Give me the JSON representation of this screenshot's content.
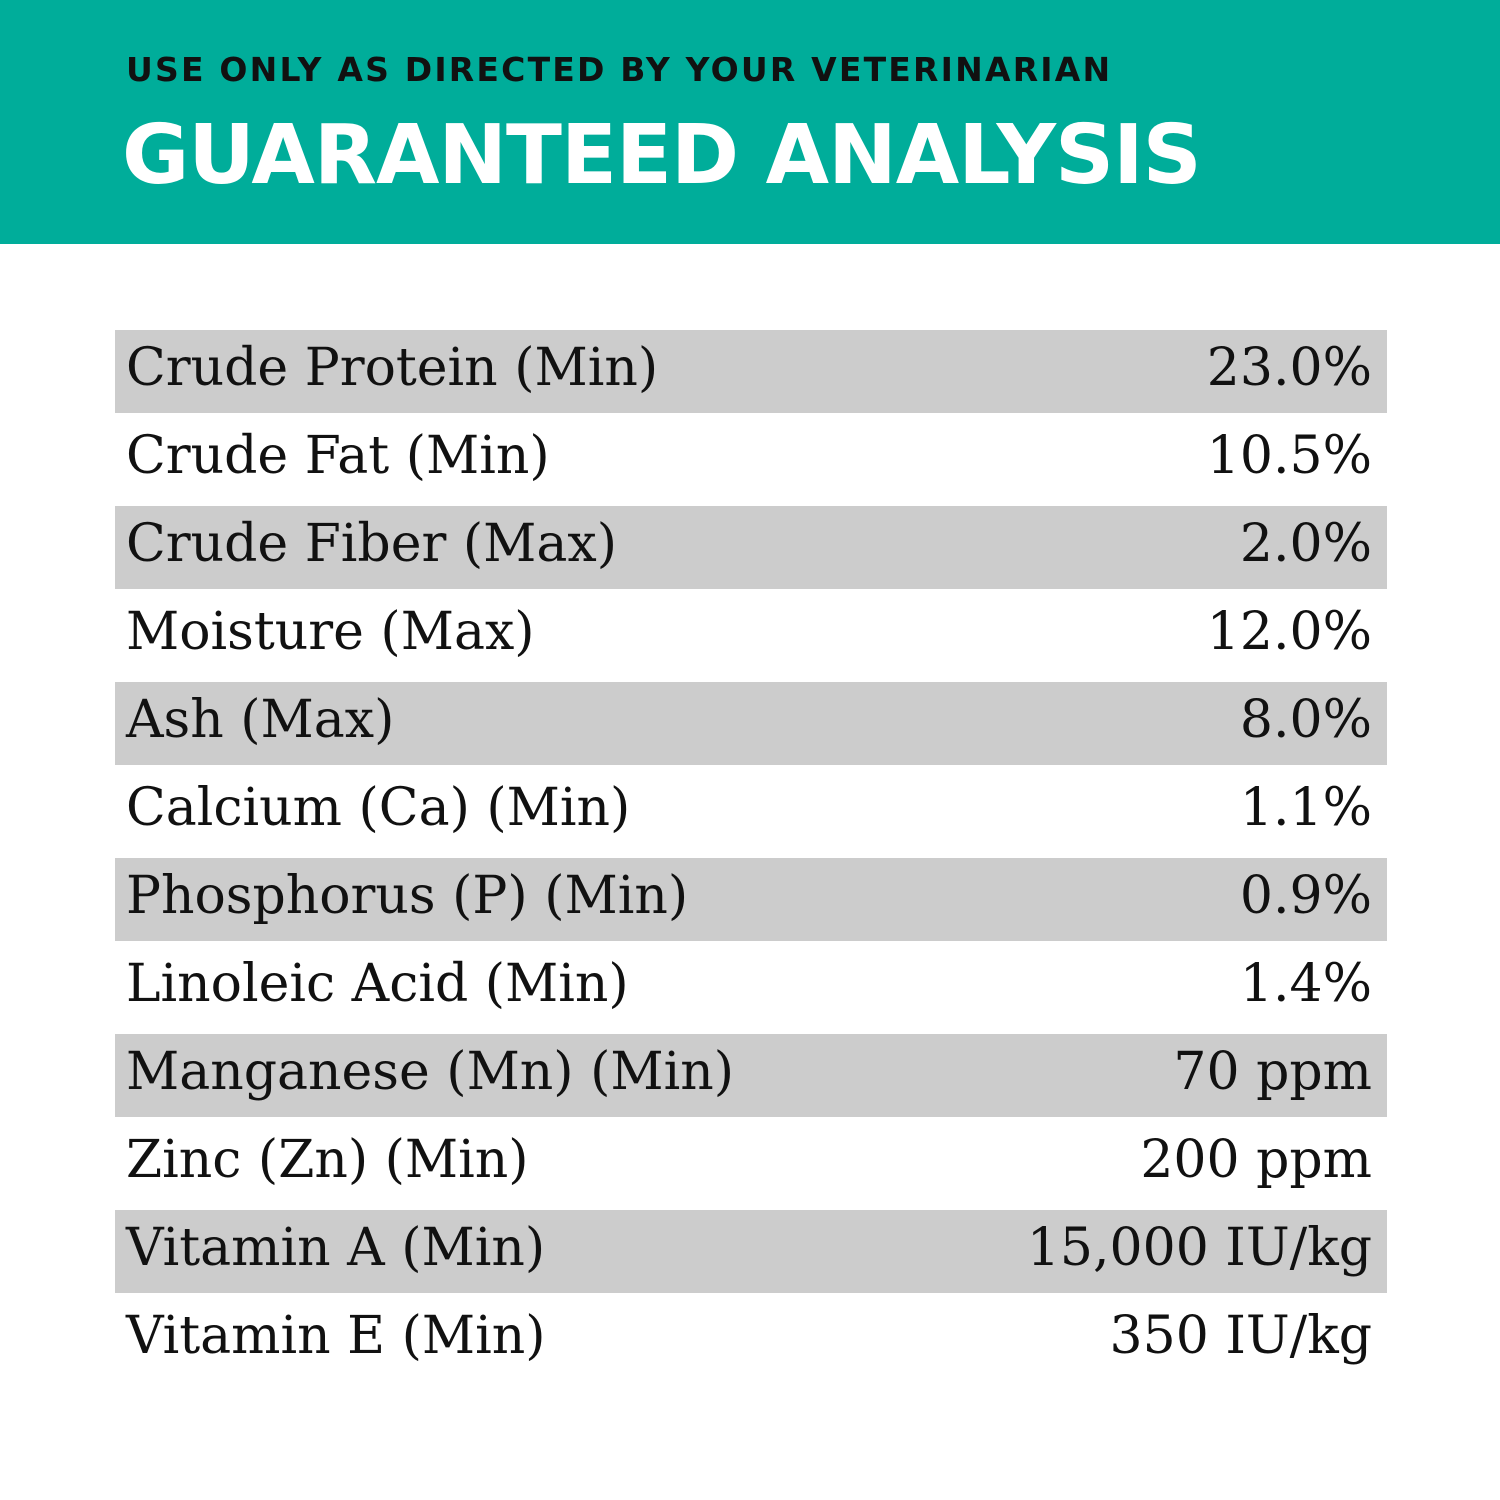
{
  "header": {
    "subtitle": "USE ONLY AS DIRECTED BY YOUR VETERINARIAN",
    "title": "GUARANTEED ANALYSIS",
    "color": "#00ad9a"
  },
  "rows": [
    {
      "label": "Crude Protein (Min)",
      "value": "23.0%"
    },
    {
      "label": "Crude Fat (Min)",
      "value": "10.5%"
    },
    {
      "label": "Crude Fiber (Max)",
      "value": "2.0%"
    },
    {
      "label": "Moisture (Max)",
      "value": "12.0%"
    },
    {
      "label": "Ash (Max)",
      "value": "8.0%"
    },
    {
      "label": "Calcium (Ca) (Min)",
      "value": "1.1%"
    },
    {
      "label": "Phosphorus (P) (Min)",
      "value": "0.9%"
    },
    {
      "label": "Linoleic Acid (Min)",
      "value": "1.4%"
    },
    {
      "label": "Manganese (Mn) (Min)",
      "value": "70 ppm"
    },
    {
      "label": "Zinc (Zn) (Min)",
      "value": "200 ppm"
    },
    {
      "label": "Vitamin A (Min)",
      "value": "15,000 IU/kg"
    },
    {
      "label": "Vitamin E (Min)",
      "value": "350 IU/kg"
    }
  ]
}
